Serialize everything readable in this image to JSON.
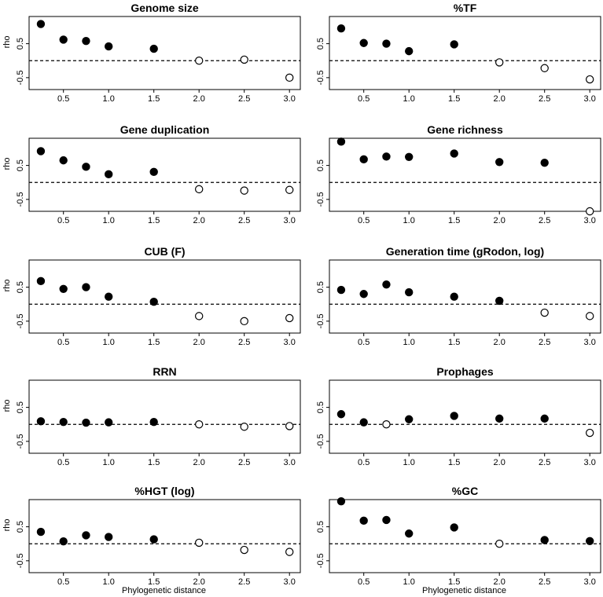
{
  "x_ticks": [
    "0.5",
    "1.0",
    "1.5",
    "2.0",
    "2.5",
    "3.0"
  ],
  "y_ticks": [
    "-0.5",
    "0.5"
  ],
  "xlabel": "Phylogenetic distance",
  "ylabel": "rho",
  "chart_data": [
    {
      "type": "scatter",
      "title": "Genome size",
      "ylabel": "rho",
      "x": [
        0.25,
        0.5,
        0.75,
        1.0,
        1.5,
        2.0,
        2.5,
        3.0
      ],
      "y": [
        1.08,
        0.62,
        0.58,
        0.42,
        0.35,
        0.0,
        0.03,
        -0.5
      ],
      "significant": [
        true,
        true,
        true,
        true,
        true,
        false,
        false,
        false
      ]
    },
    {
      "type": "scatter",
      "title": "%TF",
      "ylabel": "",
      "x": [
        0.25,
        0.5,
        0.75,
        1.0,
        1.5,
        2.0,
        2.5,
        3.0
      ],
      "y": [
        0.95,
        0.52,
        0.5,
        0.28,
        0.48,
        -0.05,
        -0.22,
        -0.55
      ],
      "significant": [
        true,
        true,
        true,
        true,
        true,
        false,
        false,
        false
      ]
    },
    {
      "type": "scatter",
      "title": "Gene duplication",
      "ylabel": "rho",
      "x": [
        0.25,
        0.5,
        0.75,
        1.0,
        1.5,
        2.0,
        2.5,
        3.0
      ],
      "y": [
        0.92,
        0.65,
        0.46,
        0.24,
        0.31,
        -0.2,
        -0.24,
        -0.22
      ],
      "significant": [
        true,
        true,
        true,
        true,
        true,
        false,
        false,
        false
      ]
    },
    {
      "type": "scatter",
      "title": "Gene richness",
      "ylabel": "",
      "x": [
        0.25,
        0.5,
        0.75,
        1.0,
        1.5,
        2.0,
        2.5,
        3.0
      ],
      "y": [
        1.2,
        0.68,
        0.76,
        0.75,
        0.85,
        0.6,
        0.58,
        -0.85
      ],
      "significant": [
        true,
        true,
        true,
        true,
        true,
        true,
        true,
        false
      ]
    },
    {
      "type": "scatter",
      "title": "CUB (F)",
      "ylabel": "rho",
      "x": [
        0.25,
        0.5,
        0.75,
        1.0,
        1.5,
        2.0,
        2.5,
        3.0
      ],
      "y": [
        0.68,
        0.45,
        0.5,
        0.22,
        0.07,
        -0.35,
        -0.5,
        -0.41
      ],
      "significant": [
        true,
        true,
        true,
        true,
        true,
        false,
        false,
        false
      ]
    },
    {
      "type": "scatter",
      "title": "Generation time (gRodon, log)",
      "ylabel": "",
      "x": [
        0.25,
        0.5,
        0.75,
        1.0,
        1.5,
        2.0,
        2.5,
        3.0
      ],
      "y": [
        0.42,
        0.3,
        0.58,
        0.35,
        0.22,
        0.1,
        -0.25,
        -0.35
      ],
      "significant": [
        true,
        true,
        true,
        true,
        true,
        true,
        false,
        false
      ]
    },
    {
      "type": "scatter",
      "title": "RRN",
      "ylabel": "rho",
      "x": [
        0.25,
        0.5,
        0.75,
        1.0,
        1.5,
        2.0,
        2.5,
        3.0
      ],
      "y": [
        0.09,
        0.07,
        0.05,
        0.06,
        0.07,
        0.0,
        -0.07,
        -0.05
      ],
      "significant": [
        true,
        true,
        true,
        true,
        true,
        false,
        false,
        false
      ]
    },
    {
      "type": "scatter",
      "title": "Prophages",
      "ylabel": "",
      "x": [
        0.25,
        0.5,
        0.75,
        1.0,
        1.5,
        2.0,
        2.5,
        3.0
      ],
      "y": [
        0.3,
        0.06,
        0.0,
        0.15,
        0.25,
        0.17,
        0.17,
        -0.25
      ],
      "significant": [
        true,
        true,
        false,
        true,
        true,
        true,
        true,
        false
      ]
    },
    {
      "type": "scatter",
      "title": "%HGT (log)",
      "ylabel": "rho",
      "x": [
        0.25,
        0.5,
        0.75,
        1.0,
        1.5,
        2.0,
        2.5,
        3.0
      ],
      "y": [
        0.35,
        0.07,
        0.25,
        0.2,
        0.13,
        0.03,
        -0.18,
        -0.24
      ],
      "significant": [
        true,
        true,
        true,
        true,
        true,
        false,
        false,
        false
      ]
    },
    {
      "type": "scatter",
      "title": "%GC",
      "ylabel": "",
      "x": [
        0.25,
        0.5,
        0.75,
        1.0,
        1.5,
        2.0,
        2.5,
        3.0
      ],
      "y": [
        1.25,
        0.68,
        0.7,
        0.3,
        0.48,
        0.0,
        0.11,
        0.08
      ],
      "significant": [
        true,
        true,
        true,
        true,
        true,
        false,
        true,
        true
      ]
    }
  ]
}
